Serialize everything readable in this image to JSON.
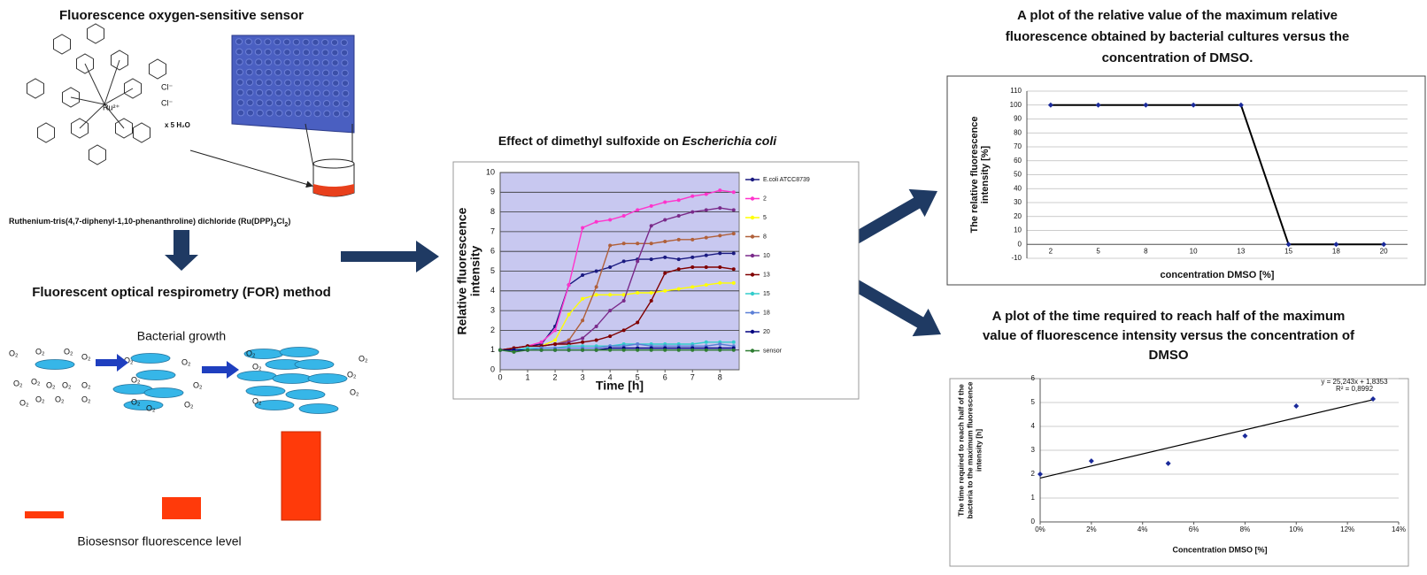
{
  "diagram": {
    "sensor_title": "Fluorescence oxygen-sensitive sensor",
    "ru_label": "Ru²⁺",
    "counter_ion": "Cl⁻",
    "hydrate": "x 5 H₂O",
    "compound": [
      "Ruthenium-tris(4,7-diphenyl-1,10-phenanthroline) dichloride (Ru(DPP)",
      "3",
      "Cl",
      "2",
      ")"
    ],
    "method_title": "Fluorescent optical respirometry (FOR) method",
    "growth_label": "Bacterial growth",
    "oxygen": "O₂",
    "level_label": "Biosesnsor fluorescence level"
  },
  "chart_data": [
    {
      "type": "line",
      "title": [
        "Effect of dimethyl sulfoxide on ",
        "Escherichia coli"
      ],
      "x_label": "Time [h]",
      "y_label": [
        "Relative fluorescence",
        "intensity"
      ],
      "x": [
        0,
        0.5,
        1,
        1.5,
        2,
        2.5,
        3,
        3.5,
        4,
        4.5,
        5,
        5.5,
        6,
        6.5,
        7,
        7.5,
        8,
        8.5
      ],
      "xlim": [
        0,
        8.7
      ],
      "xticks": [
        0,
        1,
        2,
        3,
        4,
        5,
        6,
        7,
        8
      ],
      "ylim": [
        0,
        10
      ],
      "yticks": [
        0,
        1,
        2,
        3,
        4,
        5,
        6,
        7,
        8,
        9,
        10
      ],
      "grid": true,
      "series": [
        {
          "name": "E.coli ATCC8739",
          "color": "#1a1a80",
          "values": [
            1.0,
            1.1,
            1.2,
            1.3,
            2.2,
            4.3,
            4.8,
            5.0,
            5.2,
            5.5,
            5.6,
            5.6,
            5.7,
            5.6,
            5.7,
            5.8,
            5.9,
            5.9
          ]
        },
        {
          "name": "2",
          "color": "#ff33cc",
          "values": [
            1.0,
            1.1,
            1.2,
            1.4,
            2.0,
            4.3,
            7.2,
            7.5,
            7.6,
            7.8,
            8.1,
            8.3,
            8.5,
            8.6,
            8.8,
            8.9,
            9.1,
            9.0
          ]
        },
        {
          "name": "5",
          "color": "#ffff00",
          "values": [
            1.0,
            1.1,
            1.2,
            1.2,
            1.5,
            2.8,
            3.6,
            3.8,
            3.8,
            3.8,
            3.9,
            3.9,
            4.0,
            4.1,
            4.2,
            4.3,
            4.4,
            4.4
          ]
        },
        {
          "name": "8",
          "color": "#b0603a",
          "values": [
            1.0,
            1.1,
            1.2,
            1.2,
            1.3,
            1.5,
            2.5,
            4.2,
            6.3,
            6.4,
            6.4,
            6.4,
            6.5,
            6.6,
            6.6,
            6.7,
            6.8,
            6.9
          ]
        },
        {
          "name": "10",
          "color": "#7a2a8a",
          "values": [
            1.0,
            1.1,
            1.2,
            1.2,
            1.3,
            1.4,
            1.6,
            2.2,
            3.0,
            3.5,
            5.5,
            7.3,
            7.6,
            7.8,
            8.0,
            8.1,
            8.2,
            8.1
          ]
        },
        {
          "name": "13",
          "color": "#800000",
          "values": [
            1.0,
            1.1,
            1.2,
            1.2,
            1.3,
            1.3,
            1.4,
            1.5,
            1.7,
            2.0,
            2.4,
            3.5,
            4.9,
            5.1,
            5.2,
            5.2,
            5.2,
            5.1
          ]
        },
        {
          "name": "15",
          "color": "#33cccc",
          "values": [
            1.0,
            1.0,
            1.1,
            1.1,
            1.1,
            1.2,
            1.2,
            1.2,
            1.2,
            1.3,
            1.3,
            1.3,
            1.3,
            1.3,
            1.3,
            1.4,
            1.4,
            1.4
          ]
        },
        {
          "name": "18",
          "color": "#5b7fd6",
          "values": [
            1.0,
            1.0,
            1.0,
            1.1,
            1.1,
            1.1,
            1.1,
            1.1,
            1.2,
            1.2,
            1.3,
            1.2,
            1.2,
            1.2,
            1.2,
            1.2,
            1.3,
            1.2
          ]
        },
        {
          "name": "20",
          "color": "#000080",
          "values": [
            1.0,
            1.0,
            1.0,
            1.0,
            1.0,
            1.0,
            1.0,
            1.0,
            1.1,
            1.1,
            1.1,
            1.1,
            1.1,
            1.1,
            1.1,
            1.1,
            1.1,
            1.1
          ]
        },
        {
          "name": "sensor",
          "color": "#2e7d32",
          "values": [
            1.0,
            0.9,
            1.0,
            1.0,
            1.0,
            1.0,
            1.0,
            1.0,
            1.0,
            1.0,
            1.0,
            1.0,
            1.0,
            1.0,
            1.0,
            1.0,
            1.0,
            1.0
          ]
        }
      ]
    },
    {
      "type": "line",
      "title": [
        "A plot of the relative value of the maximum relative",
        "fluorescence  obtained  by bacterial cultures  versus the",
        "concentration of DMSO."
      ],
      "x_label": "concentration DMSO [%]",
      "y_label": [
        "The relative fluorescence",
        "intensity [%]"
      ],
      "categories": [
        "2",
        "5",
        "8",
        "10",
        "13",
        "15",
        "18",
        "20"
      ],
      "values": [
        100,
        100,
        100,
        100,
        100,
        0,
        0,
        0
      ],
      "color": "#000000",
      "marker_color": "#1a2a9a",
      "ylim": [
        -10,
        110
      ],
      "yticks": [
        -10,
        0,
        10,
        20,
        30,
        40,
        50,
        60,
        70,
        80,
        90,
        100,
        110
      ],
      "grid": true
    },
    {
      "type": "scatter",
      "title": [
        "A plot of the time required to reach half of the maximum",
        "value of fluorescence intensity versus the concentration of",
        "DMSO"
      ],
      "x_label": "Concentration  DMSO [%]",
      "y_label": [
        "The time required to reach half of the",
        "bacteria to the maximum fluorescence",
        "intensity [h]"
      ],
      "x": [
        0,
        2,
        5,
        8,
        10,
        13
      ],
      "values": [
        2.0,
        2.55,
        2.45,
        3.6,
        4.85,
        5.15
      ],
      "color": "#1a2a9a",
      "trendline": {
        "x": [
          0,
          13
        ],
        "values": [
          1.8353,
          5.117
        ],
        "color": "#000000"
      },
      "annotations": [
        "y = 25,243x + 1,8353",
        "R² = 0,8992"
      ],
      "xlim": [
        0,
        14
      ],
      "xticks": [
        {
          "value": 0,
          "label": "0%"
        },
        {
          "value": 2,
          "label": "2%"
        },
        {
          "value": 4,
          "label": "4%"
        },
        {
          "value": 6,
          "label": "6%"
        },
        {
          "value": 8,
          "label": "8%"
        },
        {
          "value": 10,
          "label": "10%"
        },
        {
          "value": 12,
          "label": "12%"
        },
        {
          "value": 14,
          "label": "14%"
        }
      ],
      "ylim": [
        0,
        6
      ],
      "yticks": [
        0,
        1,
        2,
        3,
        4,
        5,
        6
      ],
      "grid": true
    }
  ]
}
